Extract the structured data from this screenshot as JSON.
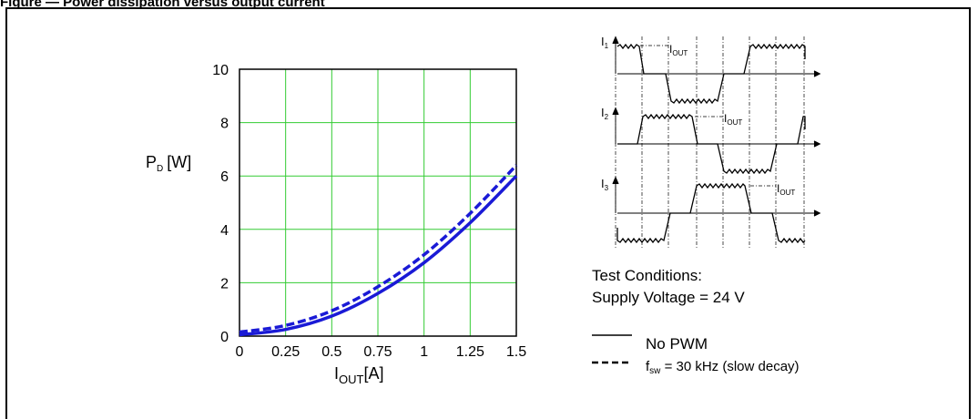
{
  "caption": "Figure — Power dissipation versus output current",
  "chart_data": {
    "type": "line",
    "ylabel": {
      "main": "P",
      "sub": "D",
      "unit": "[W]"
    },
    "xlabel": {
      "main": "I",
      "sub": "OUT",
      "unit": "[A]"
    },
    "xlim": [
      0,
      1.5
    ],
    "ylim": [
      0,
      10
    ],
    "x_ticks": [
      "0",
      "0.25",
      "0.5",
      "0.75",
      "1",
      "1.25",
      "1.5"
    ],
    "y_ticks": [
      "0",
      "2",
      "4",
      "6",
      "8",
      "10"
    ],
    "grid": true,
    "grid_color": "#33cc33",
    "series_color": "#1a1ad6",
    "series": [
      {
        "name": "No PWM",
        "style": "solid",
        "x": [
          0,
          0.25,
          0.5,
          0.75,
          1,
          1.25,
          1.5
        ],
        "y": [
          0.05,
          0.25,
          0.75,
          1.6,
          2.75,
          4.25,
          6.0
        ]
      },
      {
        "name": "f_sw = 30 kHz (slow decay)",
        "style": "dashed",
        "x": [
          0,
          0.25,
          0.5,
          0.75,
          1,
          1.25,
          1.5
        ],
        "y": [
          0.15,
          0.4,
          0.95,
          1.85,
          3.05,
          4.6,
          6.4
        ]
      }
    ]
  },
  "waveforms": {
    "labels": [
      {
        "main": "I",
        "sub": "1"
      },
      {
        "main": "I",
        "sub": "2"
      },
      {
        "main": "I",
        "sub": "3"
      }
    ],
    "iout": {
      "main": "I",
      "sub": "OUT"
    }
  },
  "test_conditions": {
    "title": "Test Conditions:",
    "supply": "Supply Voltage = 24 V"
  },
  "legend": {
    "solid_label": "No PWM",
    "dashed_prefix": "f",
    "dashed_sub": "sw",
    "dashed_rest": " = 30 kHz (slow decay)"
  }
}
